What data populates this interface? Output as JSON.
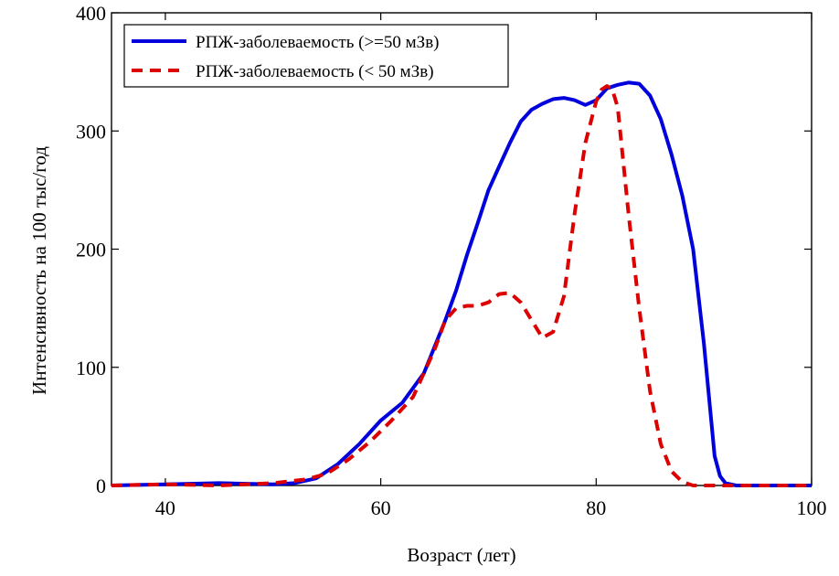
{
  "chart_data": {
    "type": "line",
    "xlabel": "Возраст (лет)",
    "ylabel": "Интенсивность на 100 тыс/год",
    "xlim": [
      35,
      100
    ],
    "ylim": [
      0,
      400
    ],
    "x_ticks": [
      40,
      60,
      80,
      100
    ],
    "y_ticks": [
      0,
      100,
      200,
      300,
      400
    ],
    "grid": false,
    "legend_position": "top-left",
    "series": [
      {
        "name": "РПЖ-заболеваемость (>=50 мЗв)",
        "color": "#0000dd",
        "style": "solid",
        "x": [
          35,
          40,
          45,
          50,
          52,
          54,
          56,
          58,
          60,
          62,
          64,
          66,
          67,
          68,
          69,
          70,
          71,
          72,
          73,
          74,
          75,
          76,
          77,
          78,
          79,
          80,
          81,
          82,
          83,
          84,
          85,
          86,
          87,
          88,
          89,
          90,
          91,
          91.5,
          92,
          93,
          95,
          100
        ],
        "y": [
          0,
          1,
          2,
          1,
          2,
          6,
          18,
          35,
          55,
          70,
          95,
          140,
          165,
          195,
          222,
          250,
          270,
          290,
          308,
          318,
          323,
          327,
          328,
          326,
          322,
          326,
          336,
          339,
          341,
          340,
          330,
          310,
          280,
          245,
          200,
          120,
          25,
          8,
          2,
          0,
          0,
          0
        ]
      },
      {
        "name": "РПЖ-заболеваемость (< 50 мЗв)",
        "color": "#dd0000",
        "style": "dashed",
        "x": [
          35,
          40,
          45,
          50,
          52,
          53,
          55,
          57,
          59,
          61,
          63,
          64,
          65,
          66,
          67,
          68,
          69,
          70,
          71,
          72,
          73,
          74,
          75,
          76,
          77,
          78,
          79,
          80,
          80.5,
          81,
          81.5,
          82,
          83,
          84,
          85,
          86,
          87,
          88,
          89,
          90,
          92,
          100
        ],
        "y": [
          0,
          1,
          0,
          2,
          4,
          5,
          10,
          22,
          37,
          55,
          75,
          95,
          115,
          140,
          150,
          152,
          152,
          155,
          162,
          163,
          155,
          140,
          125,
          130,
          160,
          230,
          290,
          325,
          335,
          338,
          335,
          320,
          230,
          150,
          80,
          35,
          12,
          3,
          0,
          0,
          0,
          0
        ]
      }
    ]
  }
}
